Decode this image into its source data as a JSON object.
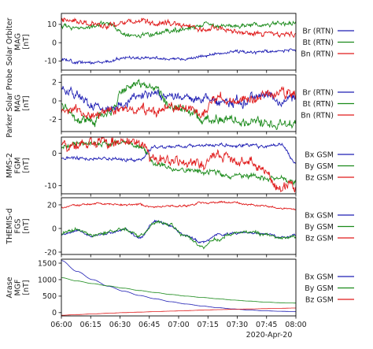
{
  "colors": {
    "x": "#1f1fb4",
    "y": "#1a8a1a",
    "z": "#e01b1b",
    "frame": "#000000"
  },
  "chart_data": {
    "type": "line",
    "x": {
      "start": "06:00",
      "end": "08:00",
      "minutes": [
        0,
        120
      ]
    },
    "xticks": [
      {
        "minute": 0,
        "label": "06:00"
      },
      {
        "minute": 15,
        "label": "06:15"
      },
      {
        "minute": 30,
        "label": "06:30"
      },
      {
        "minute": 45,
        "label": "06:45"
      },
      {
        "minute": 60,
        "label": "07:00"
      },
      {
        "minute": 75,
        "label": "07:15"
      },
      {
        "minute": 90,
        "label": "07:30"
      },
      {
        "minute": 105,
        "label": "07:45"
      },
      {
        "minute": 120,
        "label": "08:00"
      }
    ],
    "date_label": "2020-Apr-20",
    "panels": [
      {
        "ylabel": [
          "Solar Orbiter",
          "MAG",
          "[nT]"
        ],
        "ylim": [
          -15,
          16
        ],
        "yticks": [
          -10,
          0,
          10
        ],
        "legend_order": [
          "Br (RTN)",
          "Bt (RTN)",
          "Bn (RTN)"
        ],
        "series": [
          {
            "name": "Br (RTN)",
            "color": "x",
            "x": [
              0,
              8,
              16,
              24,
              32,
              40,
              48,
              56,
              64,
              72,
              80,
              88,
              96,
              104,
              112,
              120
            ],
            "values": [
              -9.5,
              -11,
              -11,
              -10.5,
              -8,
              -8,
              -8.5,
              -9,
              -9,
              -7.5,
              -6,
              -5,
              -5.5,
              -5,
              -4.5,
              -4
            ],
            "noise": 0.8,
            "seed": 11
          },
          {
            "name": "Bt (RTN)",
            "color": "y",
            "x": [
              0,
              8,
              16,
              24,
              32,
              40,
              48,
              56,
              64,
              72,
              80,
              88,
              96,
              104,
              112,
              120
            ],
            "values": [
              8.5,
              8,
              9,
              11,
              5,
              3.5,
              5,
              6,
              8,
              10,
              9.5,
              9,
              10,
              10,
              11,
              11
            ],
            "noise": 1.3,
            "seed": 12
          },
          {
            "name": "Bn (RTN)",
            "color": "z",
            "x": [
              0,
              8,
              16,
              24,
              32,
              40,
              48,
              56,
              64,
              72,
              80,
              88,
              96,
              104,
              112,
              120
            ],
            "values": [
              13,
              12,
              10,
              9,
              11,
              12,
              10,
              11,
              9,
              7,
              8,
              6,
              5.5,
              5,
              4.5,
              4.5
            ],
            "noise": 1.5,
            "seed": 13
          }
        ]
      },
      {
        "ylabel": [
          "Parker Solar Probe",
          "MAG",
          "[nT]"
        ],
        "ylim": [
          -3.3,
          2.8
        ],
        "yticks": [
          -2,
          0,
          2
        ],
        "legend_order": [
          "Br (RTN)",
          "Bt (RTN)",
          "Bn (RTN)"
        ],
        "series": [
          {
            "name": "Br (RTN)",
            "color": "x",
            "x": [
              0,
              8,
              16,
              24,
              32,
              40,
              48,
              56,
              64,
              72,
              80,
              88,
              96,
              104,
              112,
              120
            ],
            "values": [
              1.2,
              0.5,
              -0.5,
              -0.8,
              -0.3,
              0.6,
              0.9,
              0.4,
              0.6,
              0.3,
              0,
              -0.2,
              0.1,
              0.6,
              0,
              0.2
            ],
            "noise": 0.5,
            "seed": 21
          },
          {
            "name": "Bt (RTN)",
            "color": "y",
            "x": [
              0,
              8,
              16,
              24,
              32,
              40,
              48,
              56,
              64,
              72,
              80,
              88,
              96,
              104,
              112,
              120
            ],
            "values": [
              -0.8,
              -1.8,
              -2.2,
              -1.5,
              1.2,
              1.9,
              1.5,
              -0.5,
              -0.8,
              -1.8,
              -2,
              -2.2,
              -2.3,
              -2.4,
              -2.5,
              -2.4
            ],
            "noise": 0.5,
            "seed": 22
          },
          {
            "name": "Bn (RTN)",
            "color": "z",
            "x": [
              0,
              8,
              16,
              24,
              32,
              40,
              48,
              56,
              64,
              72,
              80,
              88,
              96,
              104,
              112,
              120
            ],
            "values": [
              -1,
              -1.2,
              -1.5,
              -1.2,
              -0.8,
              -1,
              -1.2,
              -0.5,
              -0.8,
              -1,
              0.2,
              -0.3,
              0.2,
              0.5,
              0.8,
              0.5
            ],
            "noise": 0.5,
            "seed": 23
          }
        ]
      },
      {
        "ylabel": [
          "MMS-2",
          "FGM",
          "[nT]"
        ],
        "ylim": [
          -12.5,
          5
        ],
        "yticks": [
          -10,
          0
        ],
        "legend_order": [
          "Bx GSM",
          "By GSM",
          "Bz GSM"
        ],
        "series": [
          {
            "name": "Bx GSM",
            "color": "x",
            "x": [
              0,
              8,
              16,
              24,
              32,
              40,
              48,
              56,
              64,
              72,
              80,
              88,
              96,
              104,
              112,
              120
            ],
            "values": [
              -1.5,
              -1.5,
              -1.8,
              -1.5,
              -2,
              -2,
              2,
              2,
              2.2,
              2.2,
              2.5,
              2.5,
              2.5,
              2.2,
              2.8,
              -3
            ],
            "noise": 0.5,
            "seed": 31
          },
          {
            "name": "By GSM",
            "color": "y",
            "x": [
              0,
              8,
              16,
              24,
              32,
              40,
              48,
              56,
              64,
              72,
              80,
              88,
              96,
              104,
              112,
              120
            ],
            "values": [
              2,
              2.5,
              3,
              3,
              3.5,
              2,
              -3,
              -5,
              -5,
              -5.5,
              -6,
              -7,
              -7,
              -7.5,
              -8,
              -9
            ],
            "noise": 0.8,
            "seed": 32
          },
          {
            "name": "Bz GSM",
            "color": "z",
            "x": [
              0,
              8,
              16,
              24,
              32,
              40,
              48,
              56,
              64,
              72,
              80,
              88,
              96,
              104,
              112,
              120
            ],
            "values": [
              2,
              2.5,
              3.5,
              3,
              3.5,
              3,
              -2,
              -2.5,
              -3,
              -3.5,
              -1,
              -2,
              -3,
              -5,
              -11,
              -10
            ],
            "noise": 1.6,
            "seed": 33
          }
        ]
      },
      {
        "ylabel": [
          "THEMIS-d",
          "FGS",
          "[nT]"
        ],
        "ylim": [
          -22,
          26
        ],
        "yticks": [
          -20,
          0,
          20
        ],
        "legend_order": [
          "Bx GSM",
          "By GSM",
          "Bz GSM"
        ],
        "series": [
          {
            "name": "Bx GSM",
            "color": "x",
            "x": [
              0,
              8,
              16,
              24,
              32,
              40,
              48,
              56,
              64,
              72,
              80,
              88,
              96,
              104,
              112,
              120
            ],
            "values": [
              -5,
              -2,
              -7,
              -4,
              -1,
              -8,
              6,
              2,
              -6,
              -12,
              -5,
              -4,
              -3,
              -5,
              -7,
              -6
            ],
            "noise": 1.0,
            "seed": 41
          },
          {
            "name": "By GSM",
            "color": "y",
            "x": [
              0,
              8,
              16,
              24,
              32,
              40,
              48,
              56,
              64,
              72,
              80,
              88,
              96,
              104,
              112,
              120
            ],
            "values": [
              -4,
              -1,
              -6,
              -3,
              0,
              -7,
              5,
              3,
              -7,
              -16,
              -9,
              -4,
              -3,
              -5,
              -8,
              -7
            ],
            "noise": 1.4,
            "seed": 42
          },
          {
            "name": "Bz GSM",
            "color": "z",
            "x": [
              0,
              8,
              16,
              24,
              32,
              40,
              48,
              56,
              64,
              72,
              80,
              88,
              96,
              104,
              112,
              120
            ],
            "values": [
              18,
              20,
              21,
              21,
              20,
              20,
              18,
              19,
              19,
              22,
              22,
              22,
              20,
              19,
              17,
              16
            ],
            "noise": 0.8,
            "seed": 43
          }
        ]
      },
      {
        "ylabel": [
          "Arase",
          "MGF",
          "[nT]"
        ],
        "ylim": [
          -100,
          1620
        ],
        "yticks": [
          0,
          500,
          1000,
          1500
        ],
        "legend_order": [
          "Bx GSM",
          "By GSM",
          "Bz GSM"
        ],
        "series": [
          {
            "name": "Bx GSM",
            "color": "x",
            "x": [
              0,
              8,
              16,
              24,
              32,
              40,
              48,
              56,
              64,
              72,
              80,
              88,
              96,
              104,
              112,
              120
            ],
            "values": [
              1580,
              1250,
              1000,
              800,
              650,
              520,
              420,
              330,
              260,
              200,
              150,
              110,
              80,
              55,
              40,
              30
            ],
            "noise": 0,
            "seed": 51
          },
          {
            "name": "By GSM",
            "color": "y",
            "x": [
              0,
              8,
              16,
              24,
              32,
              40,
              48,
              56,
              64,
              72,
              80,
              88,
              96,
              104,
              112,
              120
            ],
            "values": [
              1060,
              960,
              880,
              810,
              740,
              670,
              610,
              550,
              500,
              460,
              420,
              380,
              350,
              320,
              300,
              290
            ],
            "noise": 0,
            "seed": 52
          },
          {
            "name": "Bz GSM",
            "color": "z",
            "x": [
              0,
              8,
              16,
              24,
              32,
              40,
              48,
              56,
              64,
              72,
              80,
              88,
              96,
              104,
              112,
              120
            ],
            "values": [
              -80,
              -60,
              -40,
              -20,
              0,
              15,
              30,
              45,
              60,
              75,
              90,
              100,
              110,
              120,
              130,
              140
            ],
            "noise": 0,
            "seed": 53
          }
        ]
      }
    ]
  }
}
